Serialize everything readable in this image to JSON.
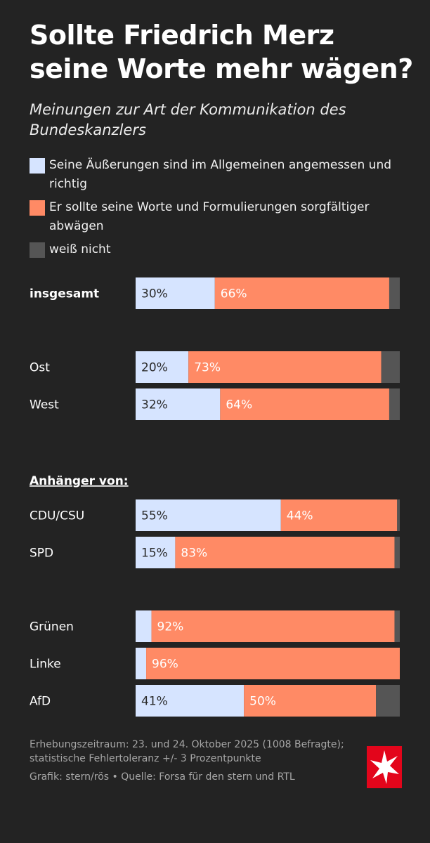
{
  "title_lines": [
    "Sollte Friedrich Merz",
    "seine Worte mehr wägen?"
  ],
  "subtitle": "Meinungen zur Art der Kommunikation des Bundeskanzlers",
  "legend": [
    {
      "label": "Seine Äußerungen sind im Allgemeinen angemessen und richtig",
      "color": "#d6e4ff"
    },
    {
      "label": "Er sollte seine Worte und Formulierungen sorgfältiger abwägen",
      "color": "#ff8a65"
    },
    {
      "label": "weiß nicht",
      "color": "#555555"
    }
  ],
  "chart_data": {
    "type": "bar",
    "orientation": "horizontal",
    "stacked": true,
    "xlim": [
      0,
      100
    ],
    "series": [
      {
        "name": "Seine Äußerungen sind im Allgemeinen angemessen und richtig",
        "color": "#d6e4ff"
      },
      {
        "name": "Er sollte seine Worte und Formulierungen sorgfältiger abwägen",
        "color": "#ff8a65"
      },
      {
        "name": "weiß nicht",
        "color": "#555555"
      }
    ],
    "section_heading": "Anhänger von:",
    "rows": [
      {
        "label": "insgesamt",
        "values": [
          30,
          66,
          4
        ],
        "labels": [
          "30%",
          "66%",
          ""
        ],
        "bold": true
      },
      {
        "label": "Ost",
        "values": [
          20,
          73,
          7
        ],
        "labels": [
          "20%",
          "73%",
          ""
        ]
      },
      {
        "label": "West",
        "values": [
          32,
          64,
          4
        ],
        "labels": [
          "32%",
          "64%",
          ""
        ]
      },
      {
        "label": "CDU/CSU",
        "values": [
          55,
          44,
          1
        ],
        "labels": [
          "55%",
          "44%",
          ""
        ]
      },
      {
        "label": "SPD",
        "values": [
          15,
          83,
          2
        ],
        "labels": [
          "15%",
          "83%",
          ""
        ]
      },
      {
        "label": "Grünen",
        "values": [
          6,
          92,
          2
        ],
        "labels": [
          "",
          "92%",
          ""
        ]
      },
      {
        "label": "Linke",
        "values": [
          4,
          96,
          0
        ],
        "labels": [
          "",
          "96%",
          ""
        ]
      },
      {
        "label": "AfD",
        "values": [
          41,
          50,
          9
        ],
        "labels": [
          "41%",
          "50%",
          ""
        ]
      }
    ]
  },
  "footer": {
    "survey": "Erhebungszeitraum: 23. und 24. Oktober 2025 (1008 Befragte); statistische Fehlertoleranz +/- 3 Prozentpunkte",
    "credit": "Grafik: stern/rös • Quelle: Forsa für den stern und RTL"
  },
  "logo": {
    "icon": "stern-logo-icon",
    "color": "#e3051b"
  }
}
